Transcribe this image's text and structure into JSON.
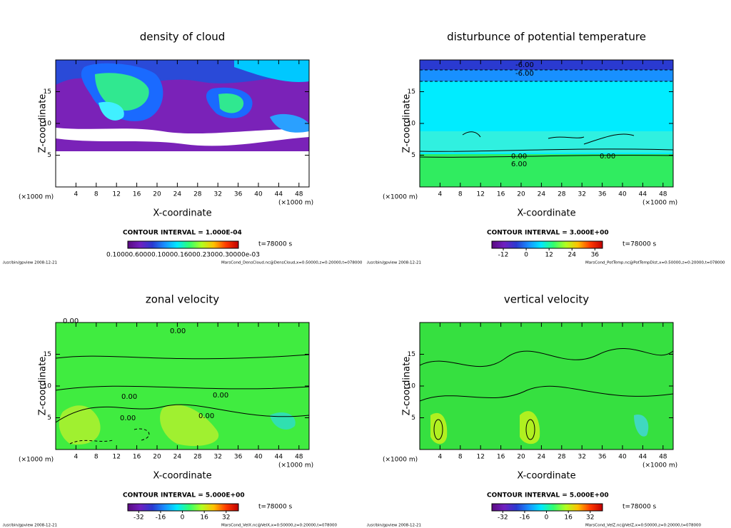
{
  "chart_data": [
    {
      "type": "contour",
      "title": "density of cloud",
      "xlabel": "X-coordinate",
      "ylabel": "Z-coordinate",
      "xunit": "(×1000 m)",
      "xlim": [
        0,
        50
      ],
      "ylim": [
        0,
        20
      ],
      "xticks": [
        4,
        8,
        12,
        16,
        20,
        24,
        28,
        32,
        36,
        40,
        44,
        48
      ],
      "yticks": [
        5,
        10,
        15
      ],
      "contour_interval": "CONTOUR INTERVAL = 1.000E-04",
      "time": "t=78000 s",
      "colorbar": {
        "label": "0.10000.60000.10000.16000.23000.30000e-03",
        "colors": [
          "#5a0a80",
          "#7020c0",
          "#2a3ad0",
          "#1890ff",
          "#00e8ff",
          "#30ff70",
          "#b0ff20",
          "#ffc000",
          "#ff3a00",
          "#c00000"
        ]
      },
      "footer_left": "/usr/bin/gpview   2008-12-21",
      "footer_right": "MarsCond_DensCloud.nc@DensCloud,x=0:50000,z=0:20000,t=078000",
      "annotations": []
    },
    {
      "type": "contour",
      "title": "disturbunce of potential temperature",
      "xlabel": "X-coordinate",
      "ylabel": "Z-coordinate",
      "xunit": "(×1000 m)",
      "xlim": [
        0,
        50
      ],
      "ylim": [
        0,
        20
      ],
      "xticks": [
        4,
        8,
        12,
        16,
        20,
        24,
        28,
        32,
        36,
        40,
        44,
        48
      ],
      "yticks": [
        5,
        10,
        15
      ],
      "contour_interval": "CONTOUR INTERVAL = 3.000E+00",
      "time": "t=78000 s",
      "colorbar": {
        "lim": [
          -18,
          40
        ],
        "ticks": [
          -12,
          0,
          12,
          24,
          36
        ],
        "colors": [
          "#5a0a80",
          "#7020c0",
          "#2a3ad0",
          "#1890ff",
          "#00e8ff",
          "#30ff70",
          "#b0ff20",
          "#ffc000",
          "#ff3a00",
          "#c00000"
        ]
      },
      "footer_left": "/usr/bin/gpview   2008-12-21",
      "footer_right": "MarsCond_PotTemp.nc@PotTempDist,x=0:50000,z=0:20000,t=078000",
      "annotations": [
        "-6.00",
        "-6.00",
        "0.00",
        "0.00",
        "6.00"
      ]
    },
    {
      "type": "contour",
      "title": "zonal velocity",
      "xlabel": "X-coordinate",
      "ylabel": "Z-coordinate",
      "xunit": "(×1000 m)",
      "xlim": [
        0,
        50
      ],
      "ylim": [
        0,
        20
      ],
      "xticks": [
        4,
        8,
        12,
        16,
        20,
        24,
        28,
        32,
        36,
        40,
        44,
        48
      ],
      "yticks": [
        5,
        10,
        15
      ],
      "contour_interval": "CONTOUR INTERVAL = 5.000E+00",
      "time": "t=78000 s",
      "colorbar": {
        "lim": [
          -40,
          41
        ],
        "ticks": [
          -32,
          -16,
          0,
          16,
          32
        ],
        "colors": [
          "#5a0a80",
          "#7020c0",
          "#2a3ad0",
          "#1890ff",
          "#00e8ff",
          "#30ff70",
          "#b0ff20",
          "#ffc000",
          "#ff3a00",
          "#c00000"
        ]
      },
      "footer_left": "/usr/bin/gpview   2008-12-21",
      "footer_right": "MarsCond_VelX.nc@VelX,x=0:50000,z=0:20000,t=078000",
      "annotations": [
        "0.00",
        "0.00",
        "0.00",
        "0.00",
        "0.00",
        "0.00"
      ]
    },
    {
      "type": "contour",
      "title": "vertical velocity",
      "xlabel": "X-coordinate",
      "ylabel": "Z-coordinate",
      "xunit": "(×1000 m)",
      "xlim": [
        0,
        50
      ],
      "ylim": [
        0,
        20
      ],
      "xticks": [
        4,
        8,
        12,
        16,
        20,
        24,
        28,
        32,
        36,
        40,
        44,
        48
      ],
      "yticks": [
        5,
        10,
        15
      ],
      "contour_interval": "CONTOUR INTERVAL = 5.000E+00",
      "time": "t=78000 s",
      "colorbar": {
        "lim": [
          -40,
          41
        ],
        "ticks": [
          -32,
          -16,
          0,
          16,
          32
        ],
        "colors": [
          "#5a0a80",
          "#7020c0",
          "#2a3ad0",
          "#1890ff",
          "#00e8ff",
          "#30ff70",
          "#b0ff20",
          "#ffc000",
          "#ff3a00",
          "#c00000"
        ]
      },
      "footer_left": "/usr/bin/gpview   2008-12-21",
      "footer_right": "MarsCond_VelZ.nc@VelZ,x=0:50000,z=0:20000,t=078000",
      "annotations": []
    }
  ]
}
